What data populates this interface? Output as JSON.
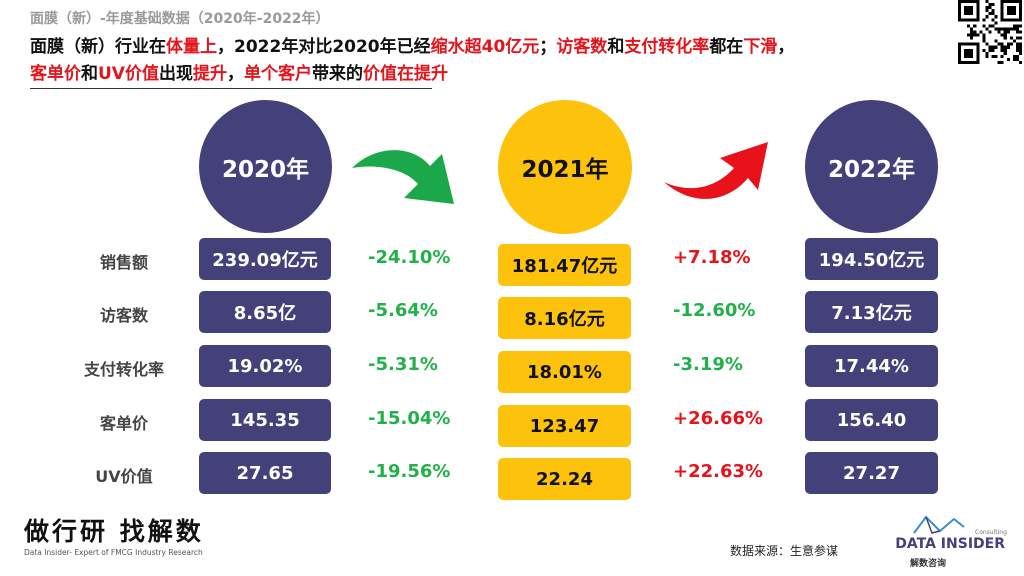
{
  "subtitle": "面膜（新）-年度基础数据（2020年-2022年）",
  "headline": {
    "line1": [
      {
        "text": "面膜（新）行业在",
        "red": false
      },
      {
        "text": "体量上",
        "red": true
      },
      {
        "text": "，2022年对比2020年已经",
        "red": false
      },
      {
        "text": "缩水超40亿元",
        "red": true
      },
      {
        "text": "；",
        "red": false
      },
      {
        "text": "访客数",
        "red": true
      },
      {
        "text": "和",
        "red": false
      },
      {
        "text": "支付转化率",
        "red": true
      },
      {
        "text": "都在",
        "red": false
      },
      {
        "text": "下滑",
        "red": true
      },
      {
        "text": "，",
        "red": false
      }
    ],
    "line2": [
      {
        "text": "客单价",
        "red": true
      },
      {
        "text": "和",
        "red": false
      },
      {
        "text": "UV价值",
        "red": true
      },
      {
        "text": "出现",
        "red": false
      },
      {
        "text": "提升",
        "red": true
      },
      {
        "text": "，",
        "red": false
      },
      {
        "text": "单个客户",
        "red": true
      },
      {
        "text": "带来的",
        "red": false
      },
      {
        "text": "价值在提升",
        "red": true
      }
    ]
  },
  "years": {
    "y2020": "2020年",
    "y2021": "2021年",
    "y2022": "2022年"
  },
  "colors": {
    "navy": "#44407a",
    "gold": "#fcc20c",
    "up_red": "#e3141c",
    "down_green": "#22b04a",
    "arrow_green": "#1aa84a",
    "arrow_red": "#e8121b"
  },
  "rows": [
    {
      "label": "销售额",
      "v2020": "239.09亿元",
      "chg1": "-24.10%",
      "v2021": "181.47亿元",
      "chg2": "+7.18%",
      "v2022": "194.50亿元"
    },
    {
      "label": "访客数",
      "v2020": "8.65亿",
      "chg1": "-5.64%",
      "v2021": "8.16亿元",
      "chg2": "-12.60%",
      "v2022": "7.13亿元"
    },
    {
      "label": "支付转化率",
      "v2020": "19.02%",
      "chg1": "-5.31%",
      "v2021": "18.01%",
      "chg2": "-3.19%",
      "v2022": "17.44%"
    },
    {
      "label": "客单价",
      "v2020": "145.35",
      "chg1": "-15.04%",
      "v2021": "123.47",
      "chg2": "+26.66%",
      "v2022": "156.40"
    },
    {
      "label": "UV价值",
      "v2020": "27.65",
      "chg1": "-19.56%",
      "v2021": "22.24",
      "chg2": "+22.63%",
      "v2022": "27.27"
    }
  ],
  "footer": {
    "logo_main": "做行研 找解数",
    "logo_sub": "Data Insider- Expert of FMCG Industry Research",
    "source": "数据来源：生意参谋",
    "brand": "DATA INSIDER",
    "brand_consulting": "Consulting",
    "brand_cn": "解数咨询"
  },
  "icons": {
    "qr": "qr-code-icon",
    "arrow1": "green-curved-arrow-icon",
    "arrow2": "red-curved-arrow-icon"
  }
}
